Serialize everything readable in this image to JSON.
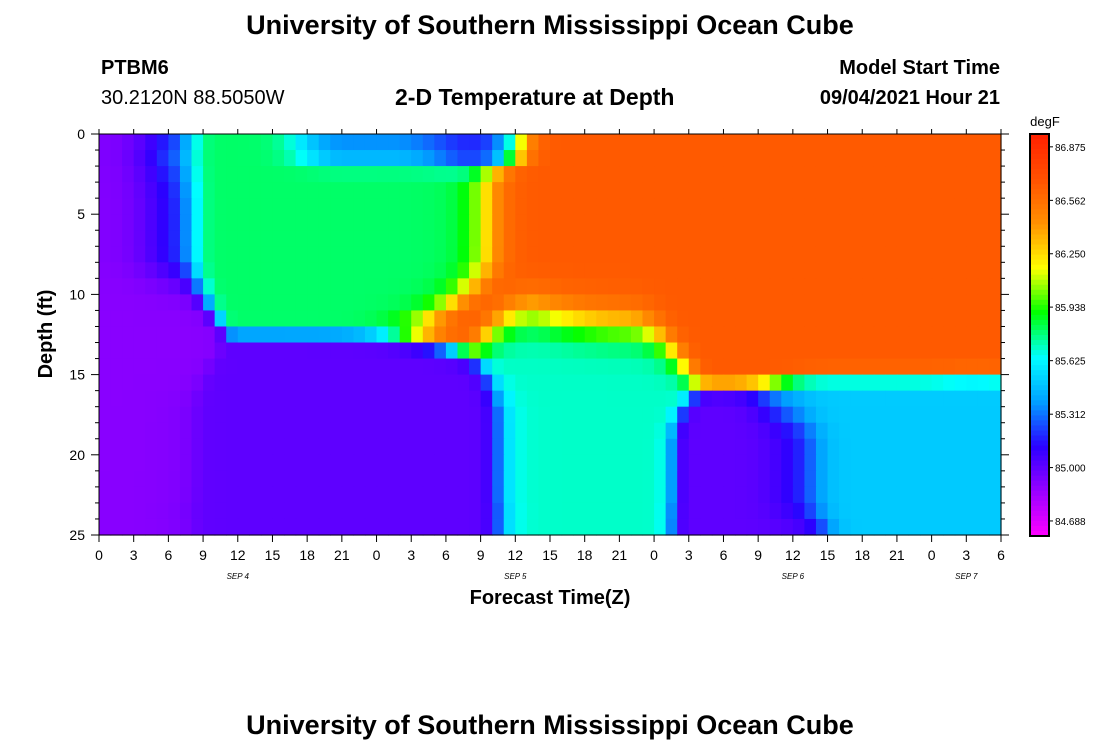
{
  "page": {
    "title_top": "University of Southern Mississippi Ocean Cube",
    "title_bottom": "University of Southern Mississippi Ocean Cube",
    "station_id": "PTBM6",
    "station_coords": "30.2120N  88.5050W",
    "plot_title": "2-D Temperature at Depth",
    "model_start_label": "Model Start Time",
    "model_start_value": "09/04/2021 Hour 21"
  },
  "chart_data": {
    "type": "heatmap",
    "title": "2-D Temperature at Depth",
    "xlabel": "Forecast Time(Z)",
    "ylabel": "Depth (ft)",
    "x_range_hours": [
      0,
      78
    ],
    "x_tick_labels": [
      "0",
      "3",
      "6",
      "9",
      "12",
      "15",
      "18",
      "21",
      "0",
      "3",
      "6",
      "9",
      "12",
      "15",
      "18",
      "21",
      "0",
      "3",
      "6",
      "9",
      "12",
      "15",
      "18",
      "21",
      "0",
      "3",
      "6"
    ],
    "date_labels": [
      {
        "text": "SEP 4",
        "hour": 12
      },
      {
        "text": "SEP 5",
        "hour": 36
      },
      {
        "text": "SEP 6",
        "hour": 60
      },
      {
        "text": "SEP 7",
        "hour": 75
      }
    ],
    "y_range": [
      0,
      25
    ],
    "y_inverted": true,
    "y_tick_labels": [
      "0",
      "5",
      "10",
      "15",
      "20",
      "25"
    ],
    "colorbar": {
      "unit": "degF",
      "range": [
        84.6,
        86.95
      ],
      "labels": [
        "86.875",
        "86.562",
        "86.250",
        "85.938",
        "85.625",
        "85.312",
        "85.000",
        "84.688"
      ],
      "colors": [
        "#ff00ff",
        "#9900ff",
        "#2b00ff",
        "#00a0ff",
        "#00ffff",
        "#00ff00",
        "#ffff00",
        "#ff9000",
        "#ff5000",
        "#ff2000"
      ]
    },
    "regions": [
      {
        "name": "cold-left",
        "hours": [
          0,
          8
        ],
        "depths": [
          0,
          25
        ],
        "value": 84.9
      },
      {
        "name": "surface-upper-day1",
        "hours": [
          6,
          30
        ],
        "depths": [
          0,
          9
        ],
        "value": 85.8
      },
      {
        "name": "surface-cold-pocket",
        "hours": [
          18,
          34
        ],
        "depths": [
          0,
          1
        ],
        "value": 85.1
      },
      {
        "name": "deep-cold-day1",
        "hours": [
          8,
          32
        ],
        "depths": [
          16,
          25
        ],
        "value": 85.0
      },
      {
        "name": "warm-core",
        "hours": [
          39,
          78
        ],
        "depths": [
          0,
          12
        ],
        "value": 86.65
      },
      {
        "name": "mid-transition",
        "hours": [
          36,
          48
        ],
        "depths": [
          12,
          25
        ],
        "value": 85.7
      },
      {
        "name": "deep-cold-day3",
        "hours": [
          51,
          62
        ],
        "depths": [
          18,
          25
        ],
        "value": 85.0
      },
      {
        "name": "deep-mixed-day3",
        "hours": [
          60,
          78
        ],
        "depths": [
          17,
          24
        ],
        "value": 85.5
      }
    ]
  }
}
